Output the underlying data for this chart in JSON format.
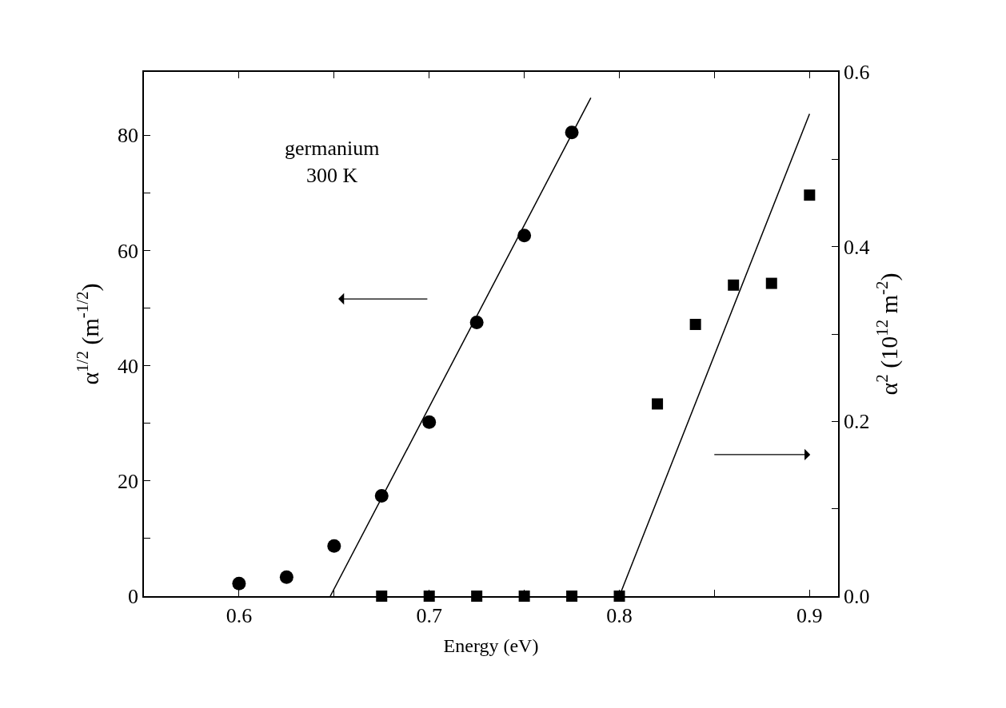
{
  "chart_data": {
    "type": "scatter",
    "xlabel": "Energy (eV)",
    "ylabel": "α$^{1/2}$ (m$^{-1/2}$)",
    "y2label": "α$^{2}$ (10$^{12}$ m$^{-2}$)",
    "xlim": [
      0.55,
      0.915
    ],
    "xticks": [
      0.6,
      {
        "value": 0.65,
        "label": null
      },
      0.7,
      {
        "value": 0.75,
        "label": null
      },
      0.8,
      {
        "value": 0.85,
        "label": null
      },
      0.9
    ],
    "ylim": [
      0,
      91
    ],
    "yticks": [
      0,
      {
        "value": 10,
        "label": null
      },
      20,
      {
        "value": 30,
        "label": null
      },
      40,
      {
        "value": 50,
        "label": null
      },
      60,
      {
        "value": 70,
        "label": null
      },
      80
    ],
    "y2lim": [
      0,
      0.6
    ],
    "y2ticks": [
      "0.0",
      {
        "value": 0.1,
        "label": null
      },
      {
        "value": 0.2,
        "label": "0.2"
      },
      {
        "value": 0.3,
        "label": null
      },
      {
        "value": 0.4,
        "label": "0.4"
      },
      {
        "value": 0.5,
        "label": null
      },
      {
        "value": 0.6,
        "label": "0.6"
      }
    ],
    "series": [
      {
        "marker": "circle",
        "color": "#000000",
        "x": [
          0.6,
          0.625,
          0.65,
          0.675,
          0.7,
          0.725,
          0.75,
          0.775
        ],
        "values": [
          2.2,
          3.3,
          8.7,
          17.4,
          30.2,
          47.5,
          62.6,
          80.5
        ]
      },
      {
        "type": "line",
        "marker": "none",
        "color": "#000000",
        "x": [
          0.648,
          0.785
        ],
        "values": [
          0,
          86.5
        ]
      },
      {
        "marker": "square",
        "axis": "y2",
        "color": "#000000",
        "x": [
          0.675,
          0.7,
          0.725,
          0.75,
          0.775,
          0.8,
          0.82,
          0.84,
          0.86,
          0.88,
          0.9
        ],
        "values": [
          0,
          0,
          0,
          0,
          0,
          0,
          0.22,
          0.311,
          0.356,
          0.358,
          0.459
        ]
      },
      {
        "type": "line",
        "marker": "none",
        "axis": "y2",
        "color": "#000000",
        "x": [
          0.8,
          0.9
        ],
        "values": [
          0,
          0.552
        ]
      }
    ],
    "annotations": [
      "germanium\n300 K"
    ]
  }
}
